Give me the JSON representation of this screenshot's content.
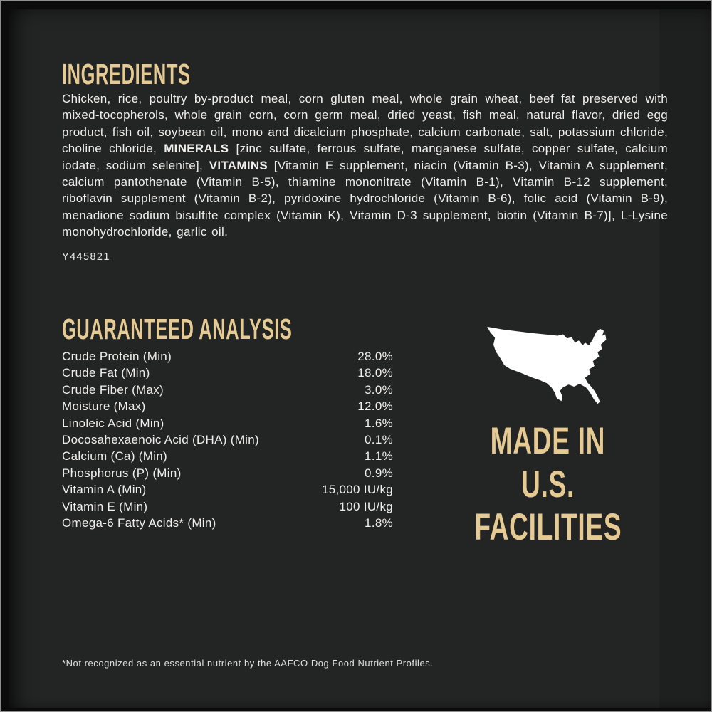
{
  "colors": {
    "panel_bg": "#232424",
    "accent_gold": "#e5ca94",
    "body_text": "#f0efed",
    "map_fill": "#ffffff"
  },
  "ingredients": {
    "heading": "INGREDIENTS",
    "segments": [
      {
        "text": "Chicken, rice, poultry by-product meal, corn gluten meal, whole grain wheat, beef fat preserved with mixed-tocopherols, whole grain corn, corn germ meal, dried yeast, fish meal, natural flavor, dried egg product, fish oil, soybean oil, mono and dicalcium phosphate, calcium carbonate, salt, potassium chloride, choline chloride, ",
        "bold": false
      },
      {
        "text": "MINERALS",
        "bold": true
      },
      {
        "text": " [zinc sulfate, ferrous sulfate, manganese sulfate, copper sulfate, calcium iodate, sodium selenite], ",
        "bold": false
      },
      {
        "text": "VITAMINS",
        "bold": true
      },
      {
        "text": " [Vitamin E supplement, niacin (Vitamin B-3), Vitamin A supplement, calcium pantothenate (Vitamin B-5), thiamine mononitrate (Vitamin B-1), Vitamin B-12 supplement, riboflavin supplement (Vitamin B-2), pyridoxine hydrochloride (Vitamin B-6), folic acid (Vitamin B-9), menadione sodium bisulfite complex (Vitamin K), Vitamin D-3 supplement, biotin (Vitamin B-7)], L-Lysine monohydrochloride, garlic oil.",
        "bold": false
      }
    ],
    "batch_code": "Y445821"
  },
  "guaranteed_analysis": {
    "heading": "GUARANTEED ANALYSIS",
    "rows": [
      {
        "label": "Crude Protein (Min)",
        "value": "28.0%"
      },
      {
        "label": "Crude Fat (Min)",
        "value": "18.0%"
      },
      {
        "label": "Crude Fiber (Max)",
        "value": "3.0%"
      },
      {
        "label": "Moisture (Max)",
        "value": "12.0%"
      },
      {
        "label": "Linoleic Acid (Min)",
        "value": "1.6%"
      },
      {
        "label": "Docosahexaenoic Acid (DHA) (Min)",
        "value": "0.1%"
      },
      {
        "label": "Calcium (Ca) (Min)",
        "value": "1.1%"
      },
      {
        "label": "Phosphorus (P) (Min)",
        "value": "0.9%"
      },
      {
        "label": "Vitamin A (Min)",
        "value": "15,000 IU/kg"
      },
      {
        "label": "Vitamin E (Min)",
        "value": "100 IU/kg"
      },
      {
        "label": "Omega-6 Fatty Acids* (Min)",
        "value": "1.8%"
      }
    ]
  },
  "made_in": {
    "lines": [
      "MADE IN",
      "U.S.",
      "FACILITIES"
    ],
    "map_icon": "usa-map-silhouette"
  },
  "footnote": "*Not recognized as an essential nutrient by the AAFCO Dog Food Nutrient Profiles."
}
